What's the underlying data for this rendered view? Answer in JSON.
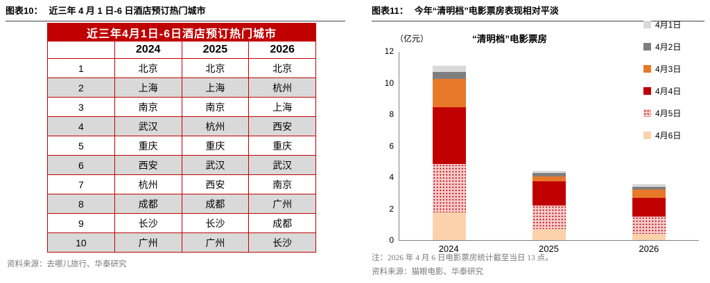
{
  "left_panel": {
    "heading_label": "图表10：",
    "heading_title": "近三年 4 月 1 日-6 日酒店预订热门城市",
    "source": "资料来源：去哪儿旅行、华泰研究"
  },
  "right_panel": {
    "heading_label": "图表11：",
    "heading_title": "今年“清明档”电影票房表现相对平淡",
    "note": "注：2026 年 4 月 6 日电影票房统计截至当日 13 点。",
    "source": "资料来源：猫眼电影、华泰研究"
  },
  "chart_data": [
    {
      "type": "table",
      "title": "近三年4月1日-6日酒店预订热门城市",
      "columns": [
        "",
        "2024",
        "2025",
        "2026"
      ],
      "rows": [
        [
          "1",
          "北京",
          "北京",
          "北京"
        ],
        [
          "2",
          "上海",
          "上海",
          "杭州"
        ],
        [
          "3",
          "南京",
          "南京",
          "上海"
        ],
        [
          "4",
          "武汉",
          "杭州",
          "西安"
        ],
        [
          "5",
          "重庆",
          "重庆",
          "重庆"
        ],
        [
          "6",
          "西安",
          "武汉",
          "武汉"
        ],
        [
          "7",
          "杭州",
          "西安",
          "南京"
        ],
        [
          "8",
          "成都",
          "成都",
          "广州"
        ],
        [
          "9",
          "长沙",
          "长沙",
          "成都"
        ],
        [
          "10",
          "广州",
          "广州",
          "长沙"
        ]
      ],
      "header_bg": "#c00000",
      "alt_row_bg": "#d9d9d9"
    },
    {
      "type": "bar",
      "stacked": true,
      "title": "“清明档”电影票房",
      "unit_label": "（亿元）",
      "categories": [
        "2024",
        "2025",
        "2026"
      ],
      "series": [
        {
          "name": "4月1日",
          "color": "#d9d9d9",
          "values": [
            0.4,
            0.15,
            0.15
          ]
        },
        {
          "name": "4月2日",
          "color": "#7f7f7f",
          "values": [
            0.45,
            0.2,
            0.2
          ]
        },
        {
          "name": "4月3日",
          "color": "#e8792b",
          "values": [
            1.8,
            0.3,
            0.5
          ]
        },
        {
          "name": "4月4日",
          "color": "#c00000",
          "values": [
            3.6,
            1.55,
            1.2
          ]
        },
        {
          "name": "4月5日",
          "color": "#c00000",
          "pattern": "dots",
          "pattern_bg": "#f6caca",
          "values": [
            3.1,
            1.5,
            1.1
          ]
        },
        {
          "name": "4月6日",
          "color": "#fbd2ac",
          "values": [
            1.75,
            0.7,
            0.4
          ]
        }
      ],
      "totals": [
        11.1,
        4.4,
        3.55
      ],
      "ylim": [
        0,
        12
      ],
      "yticks": [
        0,
        2,
        4,
        6,
        8,
        10,
        12
      ],
      "grid": false,
      "legend_position": "right"
    }
  ]
}
